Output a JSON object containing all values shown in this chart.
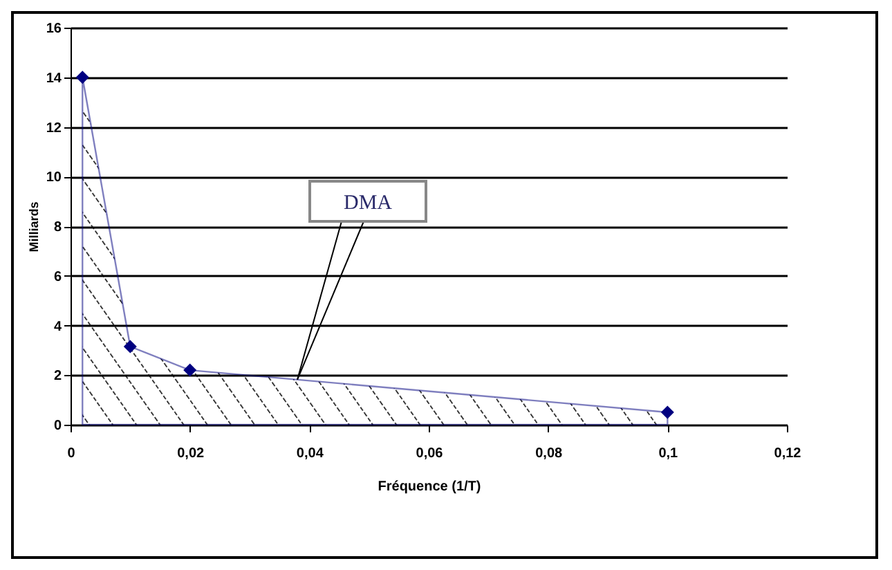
{
  "chart_data": {
    "type": "line",
    "xlabel": "Fréquence (1/T)",
    "ylabel": "Milliards",
    "x": [
      0.002,
      0.01,
      0.02,
      0.1
    ],
    "series": [
      {
        "type": "area",
        "color": "#000080",
        "values": [
          14,
          3.15,
          2.2,
          0.5
        ]
      }
    ],
    "xlim": [
      0,
      0.12
    ],
    "xticks": [
      0,
      {
        "value": 0.02,
        "label": "0,02"
      },
      {
        "value": 0.04,
        "label": "0,04"
      },
      {
        "value": 0.06,
        "label": "0,06"
      },
      {
        "value": 0.08,
        "label": "0,08"
      },
      {
        "value": 0.1,
        "label": "0,1"
      },
      {
        "value": 0.12,
        "label": "0,12"
      }
    ],
    "ylim": [
      0,
      16
    ],
    "yticks": [
      0,
      2,
      4,
      6,
      8,
      10,
      12,
      14,
      16
    ],
    "grid": "y",
    "marker": "diamond",
    "annotations": [
      {
        "text": "DMA",
        "x": 0.038,
        "y": 1.82
      }
    ]
  }
}
